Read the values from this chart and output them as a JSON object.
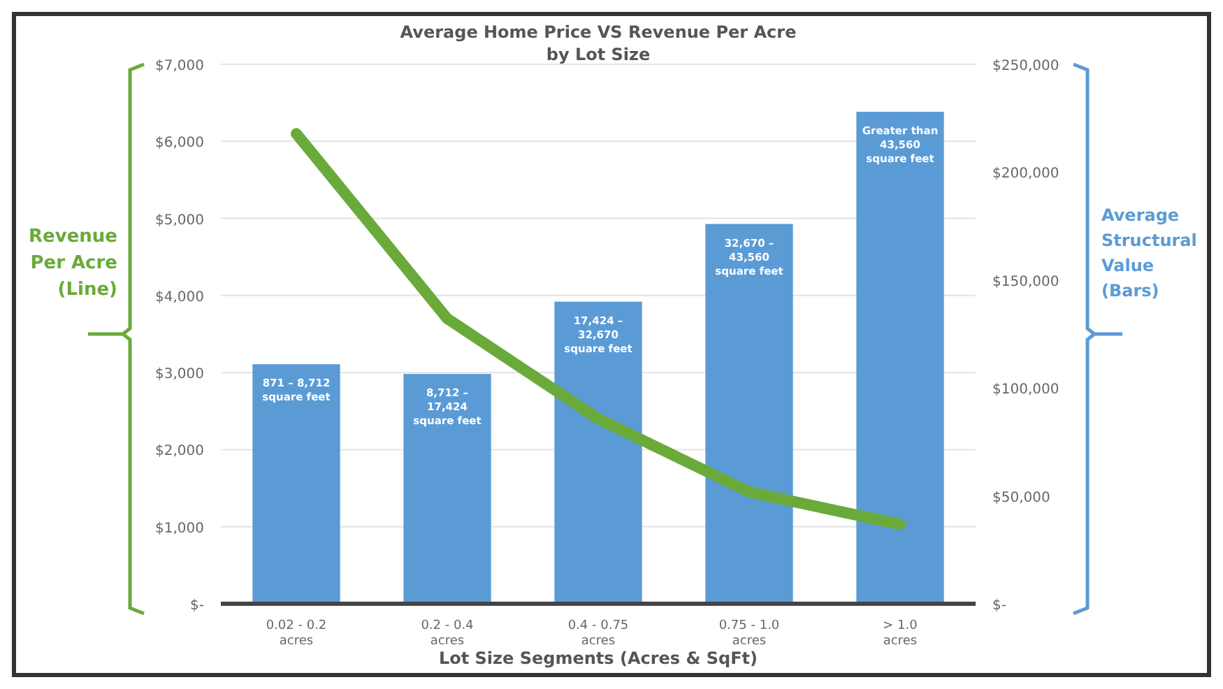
{
  "chart_data": {
    "type": "bar",
    "title": "Average Home Price VS Revenue Per Acre\nby Lot Size",
    "xlabel": "Lot Size Segments (Acres & SqFt)",
    "ylabel": "Revenue\nPer Acre\n(Line)",
    "y2label": "Average\nStructural\nValue\n(Bars)",
    "categories": [
      "0.02 - 0.2\nacres",
      "0.2 - 0.4\nacres",
      "0.4 - 0.75\nacres",
      "0.75 - 1.0\nacres",
      "> 1.0\nacres"
    ],
    "series": [
      {
        "axis": "y2",
        "color": "#5b9bd5",
        "values": [
          111000,
          106500,
          140000,
          176000,
          228000
        ]
      },
      {
        "type": "line",
        "color": "#6aaa3a",
        "values": [
          6100,
          3700,
          2400,
          1450,
          1030
        ]
      }
    ],
    "ylim": [
      0,
      7000
    ],
    "yticks": [
      {
        "value": 0,
        "label": "$-"
      },
      {
        "value": 1000,
        "label": "$1,000"
      },
      {
        "value": 2000,
        "label": "$2,000"
      },
      {
        "value": 3000,
        "label": "$3,000"
      },
      {
        "value": 4000,
        "label": "$4,000"
      },
      {
        "value": 5000,
        "label": "$5,000"
      },
      {
        "value": 6000,
        "label": "$6,000"
      },
      {
        "value": 7000,
        "label": "$7,000"
      }
    ],
    "y2lim": [
      0,
      250000
    ],
    "y2ticks": [
      {
        "value": 0,
        "label": "$-"
      },
      {
        "value": 50000,
        "label": "$50,000"
      },
      {
        "value": 100000,
        "label": "$100,000"
      },
      {
        "value": 150000,
        "label": "$150,000"
      },
      {
        "value": 200000,
        "label": "$200,000"
      },
      {
        "value": 250000,
        "label": "$250,000"
      }
    ],
    "grid": "y",
    "annotations": [
      "871 – 8,712\nsquare feet",
      "8,712 –\n17,424\nsquare feet",
      "17,424 –\n32,670\nsquare feet",
      "32,670 –\n43,560\nsquare feet",
      "Greater than\n43,560\nsquare feet"
    ]
  }
}
